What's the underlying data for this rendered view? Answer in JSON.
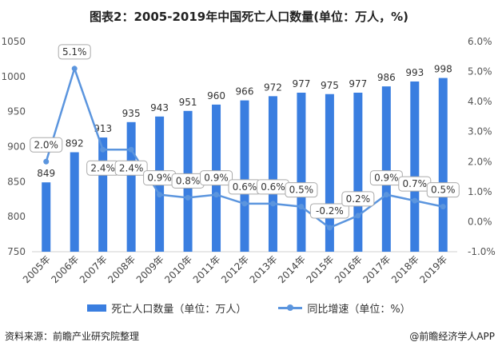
{
  "chart_data": {
    "type": "bar+line",
    "title": "图表2：2005-2019年中国死亡人口数量(单位：万人，%)",
    "categories": [
      "2005年",
      "2006年",
      "2007年",
      "2008年",
      "2009年",
      "2010年",
      "2011年",
      "2012年",
      "2013年",
      "2014年",
      "2015年",
      "2016年",
      "2017年",
      "2018年",
      "2019年"
    ],
    "series": [
      {
        "name": "死亡人口数量（单位：万人）",
        "type": "bar",
        "axis": "left",
        "color": "#3a7ee0",
        "values": [
          849,
          892,
          913,
          935,
          943,
          951,
          960,
          966,
          972,
          977,
          975,
          977,
          986,
          993,
          998
        ]
      },
      {
        "name": "同比增速（单位：%）",
        "type": "line",
        "axis": "right",
        "color": "#5b95de",
        "values": [
          2.0,
          5.1,
          2.4,
          2.4,
          0.9,
          0.8,
          0.9,
          0.6,
          0.6,
          0.5,
          -0.2,
          0.2,
          0.9,
          0.7,
          0.5
        ],
        "labels": [
          "2.0%",
          "5.1%",
          "2.4%",
          "2.4%",
          "0.9%",
          "0.8%",
          "0.9%",
          "0.6%",
          "0.6%",
          "0.5%",
          "-0.2%",
          "0.2%",
          "0.9%",
          "0.7%",
          "0.5%"
        ]
      }
    ],
    "left_axis": {
      "ylim": [
        750,
        1050
      ],
      "ticks": [
        "750",
        "800",
        "850",
        "900",
        "950",
        "1000",
        "1050"
      ]
    },
    "right_axis": {
      "ylim": [
        -1.0,
        6.0
      ],
      "ticks": [
        "-1.0%",
        "0.0%",
        "1.0%",
        "2.0%",
        "3.0%",
        "4.0%",
        "5.0%",
        "6.0%"
      ]
    },
    "grid": false,
    "legend": "bottom"
  },
  "source": "资料来源：前瞻产业研究院整理",
  "credit": "@前瞻经济学人APP"
}
